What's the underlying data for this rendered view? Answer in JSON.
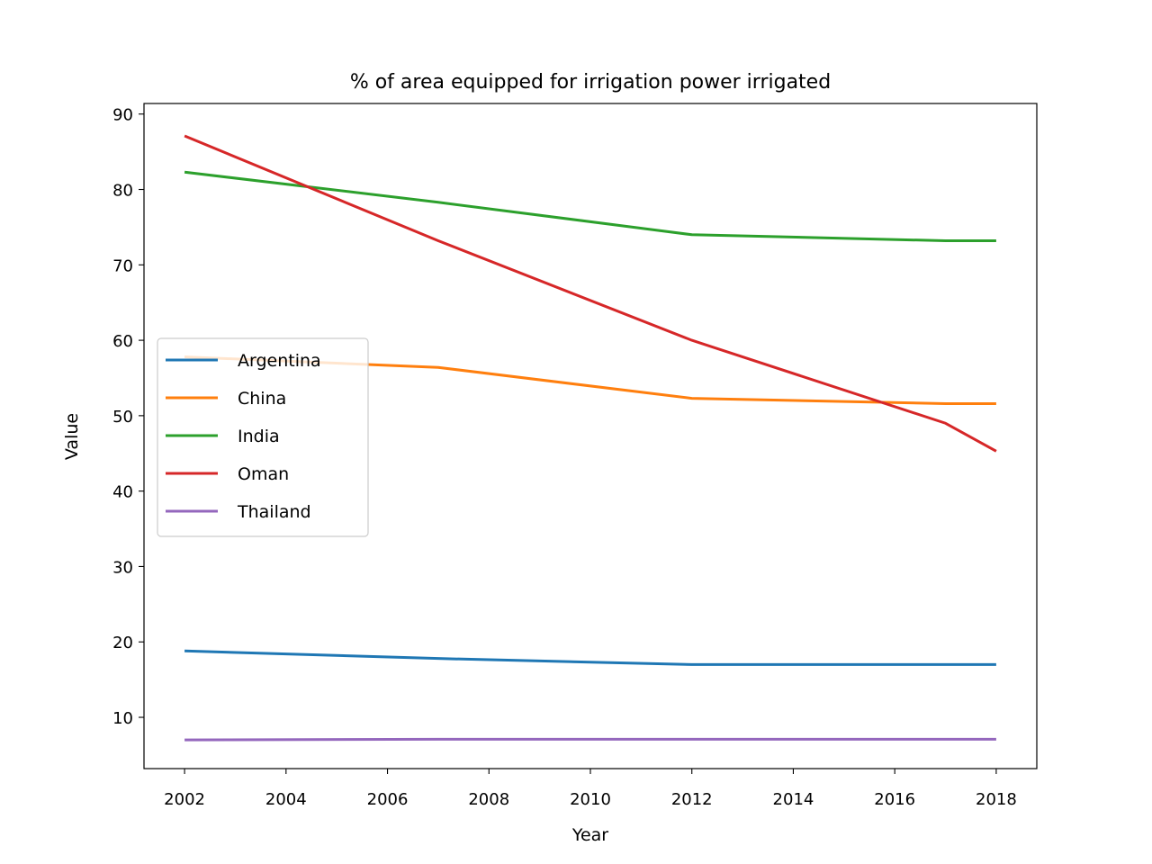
{
  "chart_data": {
    "type": "line",
    "title": "% of area equipped for irrigation power irrigated",
    "xlabel": "Year",
    "ylabel": "Value",
    "xlim": [
      2001.2,
      2018.8
    ],
    "ylim": [
      3.2,
      91.4
    ],
    "xticks": [
      2002,
      2004,
      2006,
      2008,
      2010,
      2012,
      2014,
      2016,
      2018
    ],
    "yticks": [
      10,
      20,
      30,
      40,
      50,
      60,
      70,
      80,
      90
    ],
    "grid": false,
    "legend_position": "center-left",
    "x": [
      2002,
      2007,
      2012,
      2017,
      2018
    ],
    "series": [
      {
        "name": "Argentina",
        "color": "#1f77b4",
        "values": [
          18.8,
          17.8,
          17.0,
          17.0,
          17.0
        ]
      },
      {
        "name": "China",
        "color": "#ff7f0e",
        "values": [
          57.8,
          56.4,
          52.3,
          51.6,
          51.6
        ]
      },
      {
        "name": "India",
        "color": "#2ca02c",
        "values": [
          82.3,
          78.3,
          74.0,
          73.2,
          73.2
        ]
      },
      {
        "name": "Oman",
        "color": "#d62728",
        "values": [
          87.1,
          73.2,
          60.0,
          49.0,
          45.3
        ]
      },
      {
        "name": "Thailand",
        "color": "#9467bd",
        "values": [
          7.0,
          7.1,
          7.1,
          7.1,
          7.1
        ]
      }
    ]
  }
}
